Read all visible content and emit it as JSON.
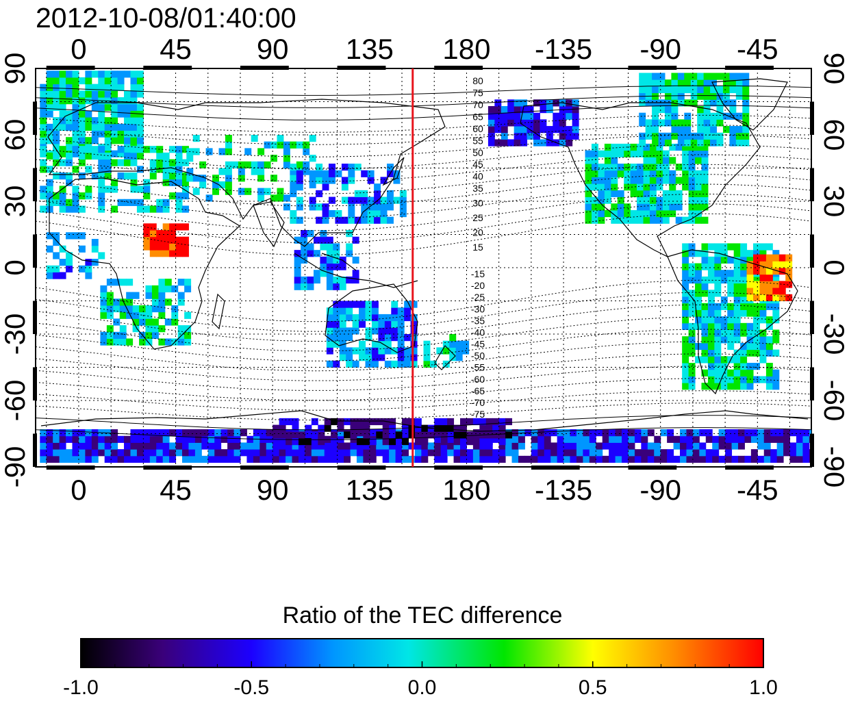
{
  "timestamp": "2012-10-08/01:40:00",
  "axes": {
    "top_ticks": [
      "0",
      "45",
      "90",
      "135",
      "180",
      "-135",
      "-90",
      "-45"
    ],
    "bottom_ticks": [
      "0",
      "45",
      "90",
      "135",
      "180",
      "-135",
      "-90",
      "-45"
    ],
    "left_ticks": [
      "90",
      "60",
      "30",
      "0",
      "-30",
      "-60",
      "-90"
    ],
    "right_ticks": [
      "90",
      "60",
      "30",
      "0",
      "-30",
      "-60",
      "-90"
    ]
  },
  "map": {
    "projection": "equirectangular",
    "lon_range": [
      -20,
      340
    ],
    "lat_range": [
      -90,
      90
    ],
    "grid_lines": "dotted, every 15 degrees",
    "marker_line_longitude": 155,
    "marker_line_color": "#e8141c",
    "coastlines": true,
    "contour_labels_north": [
      "80",
      "75",
      "70",
      "65",
      "60",
      "55",
      "50",
      "45",
      "40",
      "35",
      "30",
      "25",
      "20",
      "15"
    ],
    "contour_labels_south": [
      "-15",
      "-20",
      "-25",
      "-30",
      "-35",
      "-40",
      "-45",
      "-50",
      "-55",
      "-60",
      "-65",
      "-70",
      "-75"
    ]
  },
  "colorbar": {
    "title": "Ratio of the TEC difference",
    "range": [
      -1.0,
      1.0
    ],
    "ticks": [
      "-1.0",
      "-0.5",
      "0.0",
      "0.5",
      "1.0"
    ],
    "colormap": [
      "#000000",
      "#3a007a",
      "#1c00ff",
      "#0096ff",
      "#00e6e6",
      "#00e600",
      "#ffff00",
      "#ff8c00",
      "#ff0000"
    ]
  }
}
